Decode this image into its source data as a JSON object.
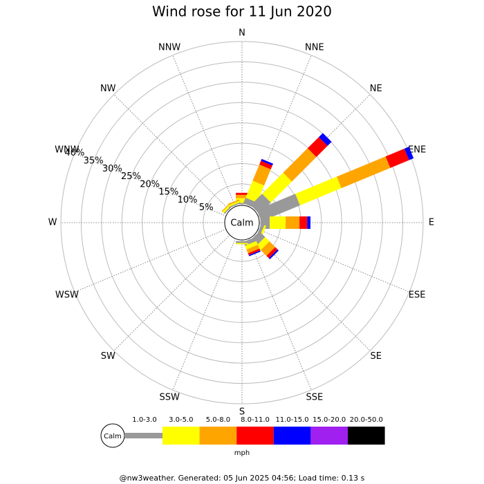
{
  "chart_data": {
    "type": "windrose",
    "title": "Wind rose for 11 Jun 2020",
    "center_label": "Calm",
    "unit_label": "mph",
    "categories": [
      "N",
      "NNE",
      "NE",
      "ENE",
      "E",
      "ESE",
      "SE",
      "SSE",
      "S",
      "SSW",
      "SW",
      "WSW",
      "W",
      "WNW",
      "NW",
      "NNW"
    ],
    "rlim": [
      0,
      40
    ],
    "rticks": [
      {
        "value": 5,
        "label": "5%"
      },
      {
        "value": 10,
        "label": "10%"
      },
      {
        "value": 15,
        "label": "15%"
      },
      {
        "value": 20,
        "label": "20%"
      },
      {
        "value": 25,
        "label": "25%"
      },
      {
        "value": 30,
        "label": "30%"
      },
      {
        "value": 35,
        "label": "35%"
      },
      {
        "value": 40,
        "label": "40%"
      }
    ],
    "grid": true,
    "series": [
      {
        "name": "1.0-3.0",
        "color": "#999999",
        "values": [
          0.3,
          1.5,
          4,
          10.3,
          2.3,
          0.8,
          2,
          1,
          0.5,
          0,
          0,
          0,
          0,
          0,
          0.3,
          0.3
        ]
      },
      {
        "name": "3.0-5.0",
        "color": "#ffff00",
        "values": [
          1.2,
          4.5,
          7.3,
          11,
          3.9,
          0.5,
          1.5,
          1,
          0.3,
          0,
          0,
          0,
          0,
          0,
          0.5,
          0.4
        ]
      },
      {
        "name": "5.0-8.0",
        "color": "#ffa500",
        "values": [
          0.8,
          4.3,
          8.5,
          13,
          3.4,
          0,
          2,
          1,
          0,
          0,
          0,
          0,
          0,
          0,
          0.2,
          0.3
        ]
      },
      {
        "name": "8.0-11.0",
        "color": "#ff0000",
        "values": [
          0.5,
          1,
          3.9,
          5,
          1.9,
          0,
          0.8,
          0.5,
          0,
          0,
          0,
          0,
          0,
          0,
          0,
          0
        ]
      },
      {
        "name": "11.0-15.0",
        "color": "#0000ff",
        "values": [
          0,
          0.5,
          1.4,
          1.2,
          0.8,
          0,
          0.4,
          0.3,
          0,
          0,
          0,
          0,
          0,
          0,
          0,
          0
        ]
      },
      {
        "name": "15.0-20.0",
        "color": "#a020f0",
        "values": [
          0,
          0,
          0,
          0,
          0,
          0,
          0,
          0,
          0,
          0,
          0,
          0,
          0,
          0,
          0,
          0
        ]
      },
      {
        "name": "20.0-50.0",
        "color": "#000000",
        "values": [
          0,
          0,
          0,
          0,
          0,
          0,
          0,
          0,
          0,
          0,
          0,
          0,
          0,
          0,
          0,
          0
        ]
      }
    ]
  },
  "footer": "@nw3weather. Generated: 05 Jun 2025 04:56; Load time: 0.13 s"
}
